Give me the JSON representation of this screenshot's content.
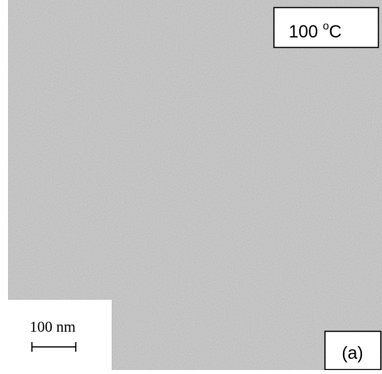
{
  "temperature_label": {
    "number": "100",
    "degree": "o",
    "unit": "C"
  },
  "scale_bar_label": "100 nm",
  "panel_label": "(a)"
}
